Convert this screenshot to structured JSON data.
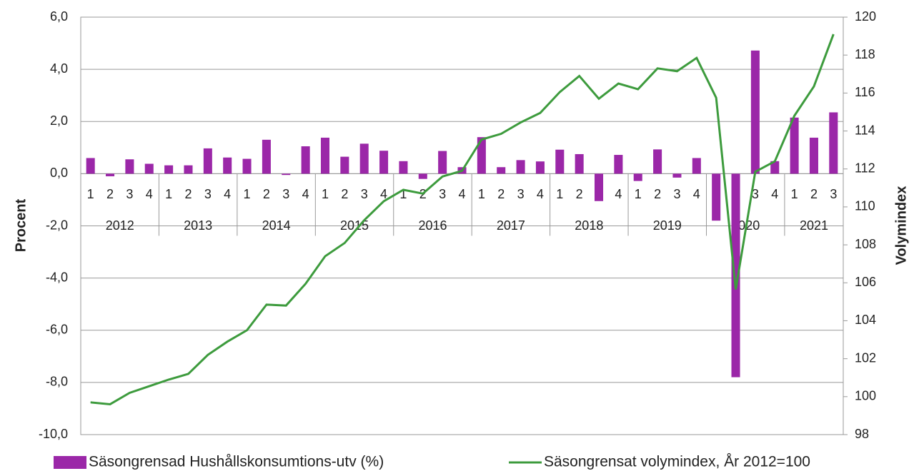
{
  "chart_data": {
    "type": "bar+line",
    "categories": [
      "1",
      "2",
      "3",
      "4",
      "1",
      "2",
      "3",
      "4",
      "1",
      "2",
      "3",
      "4",
      "1",
      "2",
      "3",
      "4",
      "1",
      "2",
      "3",
      "4",
      "1",
      "2",
      "3",
      "4",
      "1",
      "2",
      "3",
      "4",
      "1",
      "2",
      "3",
      "4",
      "1",
      "2",
      "3",
      "4",
      "1",
      "2",
      "3"
    ],
    "years": [
      "2012",
      "2013",
      "2014",
      "2015",
      "2016",
      "2017",
      "2018",
      "2019",
      "2020",
      "2021"
    ],
    "series": [
      {
        "name": "Säsongrensad Hushållskonsumtions-utv (%)",
        "type": "bar",
        "color": "#9b27a8",
        "values": [
          0.6,
          -0.1,
          0.55,
          0.38,
          0.32,
          0.32,
          0.97,
          0.62,
          0.57,
          1.3,
          -0.05,
          1.05,
          1.38,
          0.65,
          1.15,
          0.88,
          0.48,
          -0.2,
          0.87,
          0.25,
          1.4,
          0.25,
          0.52,
          0.47,
          0.92,
          0.75,
          -1.05,
          0.72,
          -0.28,
          0.93,
          -0.15,
          0.6,
          -1.8,
          -7.8,
          4.72,
          0.48,
          2.15,
          1.38,
          2.35
        ]
      },
      {
        "name": "Säsongrensat volymindex, År 2012=100",
        "type": "line",
        "color": "#3d9b3d",
        "axis": "y2",
        "values": [
          99.7,
          99.6,
          100.2,
          100.55,
          100.9,
          101.2,
          102.2,
          102.9,
          103.5,
          104.85,
          104.8,
          105.95,
          107.4,
          108.1,
          109.3,
          110.3,
          110.9,
          110.7,
          111.6,
          111.9,
          113.55,
          113.85,
          114.45,
          114.95,
          116.05,
          116.9,
          115.7,
          116.5,
          116.2,
          117.3,
          117.15,
          117.85,
          115.75,
          105.65,
          111.85,
          112.4,
          114.8,
          116.35,
          119.1
        ]
      }
    ],
    "ylabel": "Procent",
    "y2label": "Volymindex",
    "ylim": [
      -10,
      6
    ],
    "yticks": [
      {
        "value": -10,
        "label": "-10,0"
      },
      {
        "value": -8,
        "label": "-8,0"
      },
      {
        "value": -6,
        "label": "-6,0"
      },
      {
        "value": -4,
        "label": "-4,0"
      },
      {
        "value": -2,
        "label": "-2,0"
      },
      {
        "value": 0,
        "label": "0,0"
      },
      {
        "value": 2,
        "label": "2,0"
      },
      {
        "value": 4,
        "label": "4,0"
      },
      {
        "value": 6,
        "label": "6,0"
      }
    ],
    "y2lim": [
      98,
      120
    ],
    "y2ticks": [
      98,
      100,
      102,
      104,
      106,
      108,
      110,
      112,
      114,
      116,
      118,
      120
    ],
    "grid": true,
    "legend": "bottom"
  }
}
